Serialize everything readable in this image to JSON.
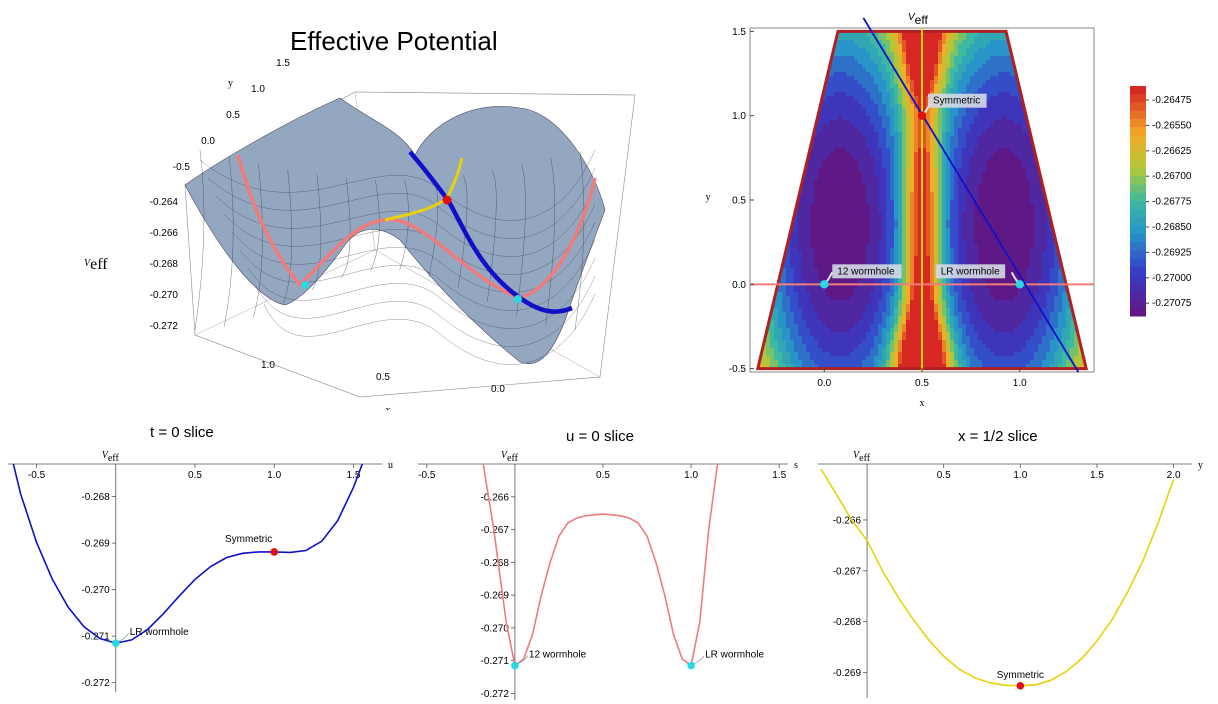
{
  "colors": {
    "blue": "#1010c8",
    "salmon": "#f07b7b",
    "yellow": "#e8d20a",
    "red_point": "#e01010",
    "cyan_point": "#29d8e0",
    "surface": "#8fa3be",
    "contour_boundary": "#b02020"
  },
  "panel_3d": {
    "title": "Effective Potential",
    "z_ticks": [
      "-0.264",
      "-0.266",
      "-0.268",
      "-0.270",
      "-0.272"
    ],
    "x_ticks": [
      "1.0",
      "0.5",
      "0.0"
    ],
    "y_ticks": [
      "-0.5",
      "0.0",
      "0.5",
      "1.0",
      "1.5"
    ],
    "xlabel": "x",
    "ylabel": "y",
    "zlabel_main": "V",
    "zlabel_sub": "eff"
  },
  "contour": {
    "title_main": "V",
    "title_sub": "eff",
    "xlabel": "x",
    "ylabel": "y",
    "x_ticks": [
      "0.0",
      "0.5",
      "1.0"
    ],
    "x_tick_values": [
      0,
      0.5,
      1
    ],
    "y_ticks": [
      "-0.5",
      "0.0",
      "0.5",
      "1.0",
      "1.5"
    ],
    "y_tick_values": [
      -0.5,
      0,
      0.5,
      1,
      1.5
    ],
    "annotations": [
      "Symmetric",
      "12 wormhole",
      "LR wormhole"
    ],
    "legend_values": [
      "-0.26475",
      "-0.26550",
      "-0.26625",
      "-0.26700",
      "-0.26775",
      "-0.26850",
      "-0.26925",
      "-0.27000",
      "-0.27075"
    ]
  },
  "chart_data": [
    {
      "type": "line",
      "title": "t = 0 slice",
      "xlabel": "u",
      "ylabel_main": "V",
      "ylabel_sub": "eff",
      "x_ticks": [
        "-0.5",
        "0.5",
        "1.0",
        "1.5"
      ],
      "x_tick_values": [
        -0.5,
        0.5,
        1.0,
        1.5
      ],
      "y_ticks": [
        "-0.268",
        "-0.269",
        "-0.270",
        "-0.271",
        "-0.272"
      ],
      "y_tick_values": [
        -0.268,
        -0.269,
        -0.27,
        -0.271,
        -0.272
      ],
      "xlim": [
        -0.68,
        1.68
      ],
      "ylim": [
        -0.2722,
        -0.2673
      ],
      "series": [
        {
          "x": [
            -0.65,
            -0.6,
            -0.5,
            -0.4,
            -0.3,
            -0.2,
            -0.1,
            0.0,
            0.1,
            0.2,
            0.3,
            0.4,
            0.5,
            0.6,
            0.7,
            0.8,
            0.9,
            1.0,
            1.1,
            1.2,
            1.3,
            1.4,
            1.5,
            1.6,
            1.65
          ],
          "y": [
            -0.26725,
            -0.26795,
            -0.26898,
            -0.26978,
            -0.27038,
            -0.2708,
            -0.27105,
            -0.27115,
            -0.27108,
            -0.27086,
            -0.27052,
            -0.27014,
            -0.26978,
            -0.2695,
            -0.26931,
            -0.26922,
            -0.26919,
            -0.26919,
            -0.2692,
            -0.26916,
            -0.26896,
            -0.26852,
            -0.2678,
            -0.2669,
            -0.2662
          ]
        }
      ],
      "points": [
        {
          "label": "LR wormhole",
          "x": 0.0,
          "y": -0.27115,
          "color": "cyan"
        },
        {
          "label": "Symmetric",
          "x": 1.0,
          "y": -0.26919,
          "color": "red"
        }
      ]
    },
    {
      "type": "line",
      "title": "u = 0  slice",
      "xlabel": "s",
      "ylabel_main": "V",
      "ylabel_sub": "eff",
      "x_ticks": [
        "-0.5",
        "0.5",
        "1.0",
        "1.5"
      ],
      "x_tick_values": [
        -0.5,
        0.5,
        1.0,
        1.5
      ],
      "y_ticks": [
        "-0.266",
        "-0.267",
        "-0.268",
        "-0.269",
        "-0.270",
        "-0.271",
        "-0.272"
      ],
      "y_tick_values": [
        -0.266,
        -0.267,
        -0.268,
        -0.269,
        -0.27,
        -0.271,
        -0.272
      ],
      "xlim": [
        -0.55,
        1.55
      ],
      "ylim": [
        -0.2722,
        -0.265
      ],
      "series": [
        {
          "x": [
            -0.18,
            -0.12,
            -0.05,
            0.0,
            0.05,
            0.1,
            0.15,
            0.2,
            0.25,
            0.3,
            0.35,
            0.4,
            0.45,
            0.5,
            0.55,
            0.6,
            0.65,
            0.7,
            0.75,
            0.8,
            0.85,
            0.9,
            0.95,
            1.0,
            1.05,
            1.1,
            1.15,
            1.2
          ],
          "y": [
            -0.265,
            -0.267,
            -0.2698,
            -0.27115,
            -0.27095,
            -0.2702,
            -0.269,
            -0.268,
            -0.2672,
            -0.2668,
            -0.26665,
            -0.26658,
            -0.26655,
            -0.26653,
            -0.26655,
            -0.26658,
            -0.26665,
            -0.2668,
            -0.2672,
            -0.268,
            -0.269,
            -0.2702,
            -0.27095,
            -0.27115,
            -0.2698,
            -0.267,
            -0.265,
            -0.264
          ]
        }
      ],
      "points": [
        {
          "label": "12 wormhole",
          "x": 0.0,
          "y": -0.27115,
          "color": "cyan"
        },
        {
          "label": "LR wormhole",
          "x": 1.0,
          "y": -0.27115,
          "color": "cyan"
        }
      ]
    },
    {
      "type": "line",
      "title": "x = 1/2  slice",
      "xlabel": "y",
      "ylabel_main": "V",
      "ylabel_sub": "eff",
      "x_ticks": [
        "0.5",
        "1.0",
        "1.5",
        "2.0"
      ],
      "x_tick_values": [
        0.5,
        1.0,
        1.5,
        2.0
      ],
      "y_ticks": [
        "-0.266",
        "-0.267",
        "-0.268",
        "-0.269"
      ],
      "y_tick_values": [
        -0.266,
        -0.267,
        -0.268,
        -0.269
      ],
      "xlim": [
        -0.32,
        2.12
      ],
      "ylim": [
        -0.2695,
        -0.2649
      ],
      "series": [
        {
          "x": [
            -0.3,
            -0.1,
            0.0,
            0.1,
            0.2,
            0.3,
            0.4,
            0.5,
            0.6,
            0.7,
            0.8,
            0.9,
            1.0,
            1.1,
            1.2,
            1.3,
            1.4,
            1.5,
            1.6,
            1.7,
            1.8,
            1.9,
            2.0
          ],
          "y": [
            -0.265,
            -0.266,
            -0.2664,
            -0.267,
            -0.2675,
            -0.26795,
            -0.26835,
            -0.26868,
            -0.26893,
            -0.2691,
            -0.2692,
            -0.26925,
            -0.26926,
            -0.26924,
            -0.26915,
            -0.26898,
            -0.26873,
            -0.26838,
            -0.26795,
            -0.26742,
            -0.2668,
            -0.26605,
            -0.2652
          ]
        }
      ],
      "points": [
        {
          "label": "Symmetric",
          "x": 1.0,
          "y": -0.26926,
          "color": "red"
        }
      ]
    }
  ]
}
